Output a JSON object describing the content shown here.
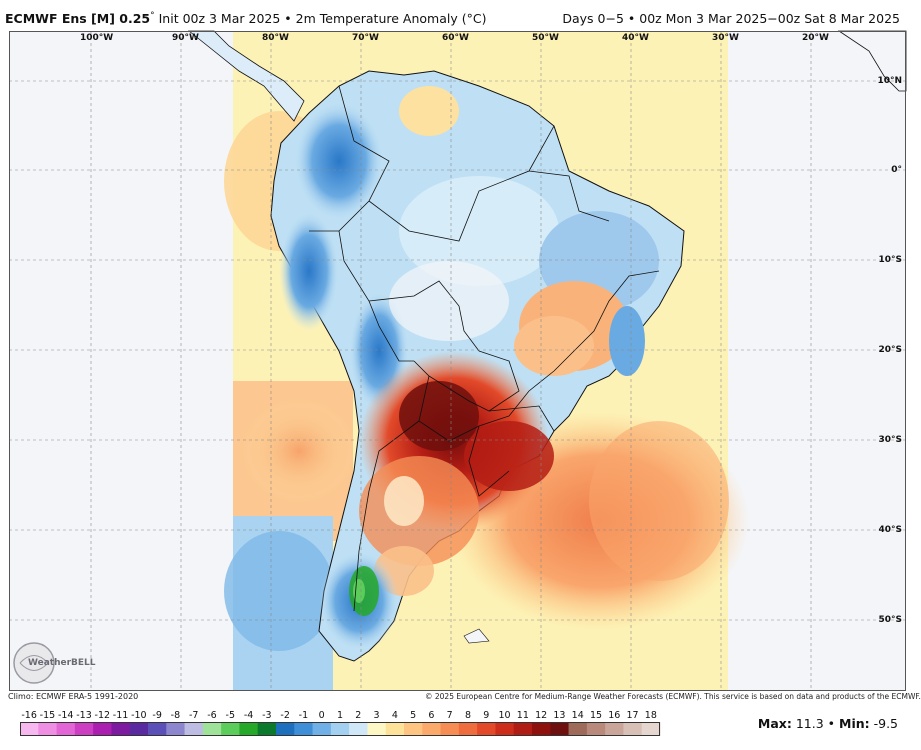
{
  "header": {
    "model": "ECMWF Ens [M] 0.25",
    "degree": "°",
    "init": "Init 00z 3 Mar 2025",
    "bullet": "•",
    "field": "2m Temperature Anomaly (°C)",
    "valid": "Days 0−5 • 00z Mon 3 Mar 2025−00z Sat 8 Mar 2025"
  },
  "map": {
    "lon_labels": [
      "100°W",
      "90°W",
      "80°W",
      "70°W",
      "60°W",
      "50°W",
      "40°W",
      "30°W",
      "20°W"
    ],
    "lat_labels": [
      "10°N",
      "0°",
      "10°S",
      "20°S",
      "30°S",
      "40°S",
      "50°S"
    ],
    "logo_text": "WeatherBELL"
  },
  "footer": {
    "climo": "Climo: ECMWF ERA-5 1991-2020",
    "copyright": "© 2025 European Centre for Medium-Range Weather Forecasts (ECMWF). This service is based on data and products of the ECMWF."
  },
  "colorbar": {
    "labels": [
      "-16",
      "-15",
      "-14",
      "-13",
      "-12",
      "-11",
      "-10",
      "-9",
      "-8",
      "-7",
      "-6",
      "-5",
      "-4",
      "-3",
      "-2",
      "-1",
      "0",
      "1",
      "2",
      "3",
      "4",
      "5",
      "6",
      "7",
      "8",
      "9",
      "10",
      "11",
      "12",
      "13",
      "14",
      "15",
      "16",
      "17",
      "18"
    ],
    "colors": [
      "#f7b8f0",
      "#ef8fe4",
      "#e266d6",
      "#cc3fc2",
      "#aa1fb0",
      "#7e1a9f",
      "#5a2aa0",
      "#5b4fb8",
      "#8c86cf",
      "#bdbde3",
      "#9fe39a",
      "#5ccc5a",
      "#26a828",
      "#0b7a2c",
      "#1f6fbf",
      "#3f8fd8",
      "#70b0e6",
      "#a3cff0",
      "#cfe7f6",
      "#fcf7c5",
      "#fde39a",
      "#fdc581",
      "#fbaa6b",
      "#f58d55",
      "#ee6c3e",
      "#e24a2a",
      "#cc2e1b",
      "#b01d14",
      "#8e110e",
      "#6e1010",
      "#9e6b5a",
      "#b98a7c",
      "#caa59a",
      "#d9c0b6",
      "#e6d6d0"
    ]
  },
  "stats": {
    "max_label": "Max:",
    "max_value": "11.3",
    "min_label": "Min:",
    "min_value": "-9.5"
  }
}
